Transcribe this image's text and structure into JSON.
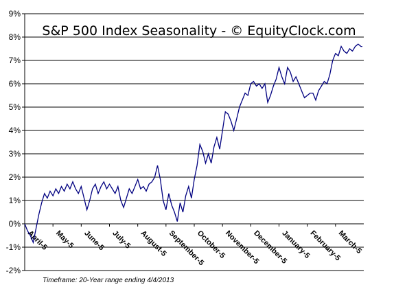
{
  "chart_data": {
    "type": "line",
    "title": "S&P 500 Index Seasonality - © EquityClock.com",
    "footnote": "Timeframe: 20-Year range ending 4/4/2013",
    "xlabel": "",
    "ylabel": "",
    "ylim": [
      -2,
      9
    ],
    "y_ticks": [
      -2,
      -1,
      0,
      1,
      2,
      3,
      4,
      5,
      6,
      7,
      8,
      9
    ],
    "y_tick_labels": [
      "-2%",
      "-1%",
      "0%",
      "1%",
      "2%",
      "3%",
      "4%",
      "5%",
      "6%",
      "7%",
      "8%",
      "9%"
    ],
    "x_range": [
      0,
      12
    ],
    "x_ticks": [
      0,
      1,
      2,
      3,
      4,
      5,
      6,
      7,
      8,
      9,
      10,
      11
    ],
    "x_tick_labels": [
      "April-5",
      "May-5",
      "June-5",
      "July-5",
      "August-5",
      "September-5",
      "October-5",
      "November-5",
      "December-5",
      "January-5",
      "February-5",
      "March-5"
    ],
    "grid": "horizontal",
    "line_color": "#000080",
    "series": [
      {
        "x": [
          0,
          0.1,
          0.2,
          0.3,
          0.4,
          0.5,
          0.6,
          0.7,
          0.8,
          0.9,
          1.0,
          1.1,
          1.2,
          1.3,
          1.4,
          1.5,
          1.6,
          1.7,
          1.8,
          1.9,
          2.0,
          2.1,
          2.2,
          2.3,
          2.4,
          2.5,
          2.6,
          2.7,
          2.8,
          2.9,
          3.0,
          3.1,
          3.2,
          3.3,
          3.4,
          3.5,
          3.6,
          3.7,
          3.8,
          3.9,
          4.0,
          4.1,
          4.2,
          4.3,
          4.4,
          4.5,
          4.6,
          4.7,
          4.8,
          4.9,
          5.0,
          5.1,
          5.2,
          5.3,
          5.4,
          5.5,
          5.6,
          5.7,
          5.8,
          5.9,
          6.0,
          6.1,
          6.2,
          6.3,
          6.4,
          6.5,
          6.6,
          6.7,
          6.8,
          6.9,
          7.0,
          7.1,
          7.2,
          7.3,
          7.4,
          7.5,
          7.6,
          7.7,
          7.8,
          7.9,
          8.0,
          8.1,
          8.2,
          8.3,
          8.4,
          8.5,
          8.6,
          8.7,
          8.8,
          8.9,
          9.0,
          9.1,
          9.2,
          9.3,
          9.4,
          9.5,
          9.6,
          9.7,
          9.8,
          9.9,
          10.0,
          10.1,
          10.2,
          10.3,
          10.4,
          10.5,
          10.6,
          10.7,
          10.8,
          10.9,
          11.0,
          11.1,
          11.2,
          11.3,
          11.4,
          11.5,
          11.6,
          11.7,
          11.8,
          11.9,
          11.95
        ],
        "values": [
          0.0,
          -0.3,
          -0.5,
          -0.8,
          -0.2,
          0.4,
          0.9,
          1.3,
          1.1,
          1.4,
          1.2,
          1.5,
          1.3,
          1.6,
          1.4,
          1.7,
          1.5,
          1.8,
          1.5,
          1.3,
          1.6,
          1.1,
          0.6,
          1.0,
          1.5,
          1.7,
          1.3,
          1.6,
          1.8,
          1.5,
          1.7,
          1.5,
          1.3,
          1.6,
          1.0,
          0.7,
          1.1,
          1.5,
          1.3,
          1.6,
          1.9,
          1.5,
          1.6,
          1.4,
          1.7,
          1.8,
          2.0,
          2.5,
          1.9,
          1.0,
          0.6,
          1.3,
          0.8,
          0.5,
          0.1,
          0.9,
          0.5,
          1.2,
          1.6,
          1.1,
          1.9,
          2.5,
          3.4,
          3.1,
          2.6,
          3.0,
          2.6,
          3.3,
          3.7,
          3.2,
          4.0,
          4.8,
          4.7,
          4.4,
          4.0,
          4.5,
          5.0,
          5.3,
          5.6,
          5.5,
          6.0,
          6.1,
          5.9,
          6.0,
          5.8,
          6.0,
          5.2,
          5.5,
          5.9,
          6.2,
          6.7,
          6.3,
          6.0,
          6.7,
          6.5,
          6.1,
          6.3,
          6.0,
          5.7,
          5.4,
          5.5,
          5.6,
          5.6,
          5.3,
          5.7,
          5.9,
          6.1,
          6.0,
          6.4,
          7.0,
          7.3,
          7.2,
          7.6,
          7.4,
          7.3,
          7.5,
          7.4,
          7.6,
          7.7,
          7.6,
          7.6
        ]
      }
    ]
  }
}
